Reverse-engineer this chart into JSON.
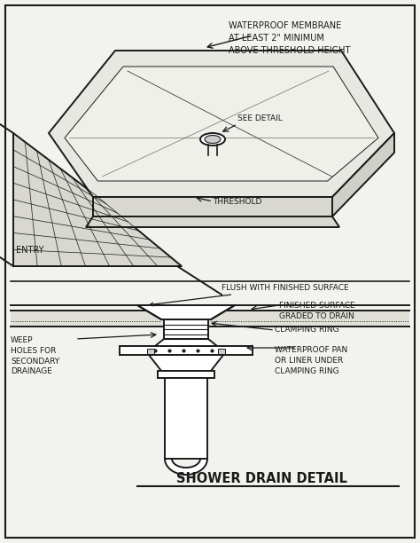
{
  "bg_color": "#f2f2ee",
  "line_color": "#1a1a1a",
  "fill_pan_top": "#e8e8e2",
  "fill_pan_inner": "#f0f0ea",
  "fill_pan_front": "#d8d8d0",
  "fill_pan_right": "#d0d0c8",
  "fill_tile": "#d8d8d0",
  "fill_drain_white": "#ffffff",
  "title": "SHOWER DRAIN DETAIL",
  "label_membrane": "WATERPROOF MEMBRANE\nAT LEAST 2\" MINIMUM\nABOVE THRESHOLD HEIGHT",
  "label_see_detail": "SEE DETAIL",
  "label_threshold": "THRESHOLD",
  "label_entry": "ENTRY",
  "label_flush": "FLUSH WITH FINISHED SURFACE",
  "label_finished": "FINISHED SURFACE\nGRADED TO DRAIN",
  "label_clamping": "CLAMPING RING",
  "label_weep": "WEEP\nHOLES FOR\nSECONDARY\nDRAINAGE",
  "label_waterproof": "WATERPROOF PAN\nOR LINER UNDER\nCLAMPING RING"
}
